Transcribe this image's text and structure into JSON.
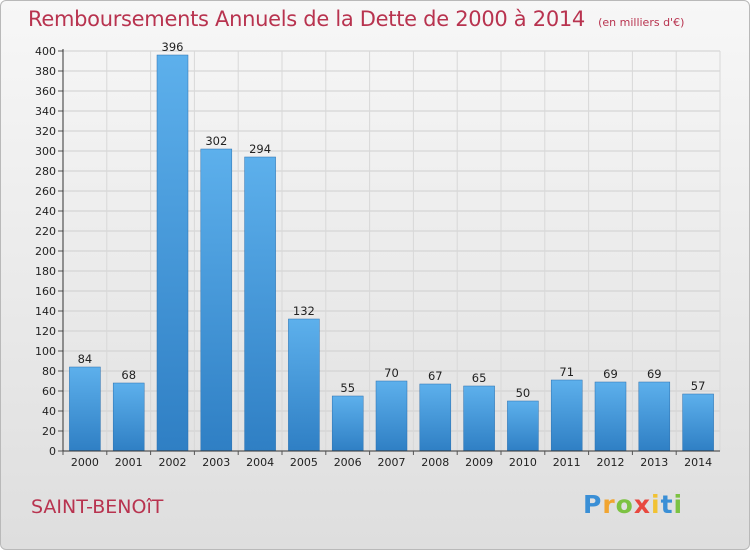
{
  "chart_data": {
    "type": "bar",
    "title": "Remboursements Annuels de la Dette de 2000 à 2014",
    "subtitle": "(en milliers d'€)",
    "categories": [
      "2000",
      "2001",
      "2002",
      "2003",
      "2004",
      "2005",
      "2006",
      "2007",
      "2008",
      "2009",
      "2010",
      "2011",
      "2012",
      "2013",
      "2014"
    ],
    "values": [
      84,
      68,
      396,
      302,
      294,
      132,
      55,
      70,
      67,
      65,
      50,
      71,
      69,
      69,
      57
    ],
    "ylim": [
      0,
      400
    ],
    "yticks": [
      0,
      20,
      40,
      60,
      80,
      100,
      120,
      140,
      160,
      180,
      200,
      220,
      240,
      260,
      280,
      300,
      320,
      340,
      360,
      380,
      400
    ],
    "grid": true,
    "bar_color": "#4a9fe0",
    "xlabel": "",
    "ylabel": ""
  },
  "footer": {
    "commune": "SAINT-BENOîT",
    "brand": [
      "P",
      "r",
      "o",
      "x",
      "i",
      "t",
      "i"
    ]
  },
  "colors": {
    "title": "#b8334f",
    "bar_top": "#5db0ec",
    "bar_bottom": "#2f7fc4"
  }
}
